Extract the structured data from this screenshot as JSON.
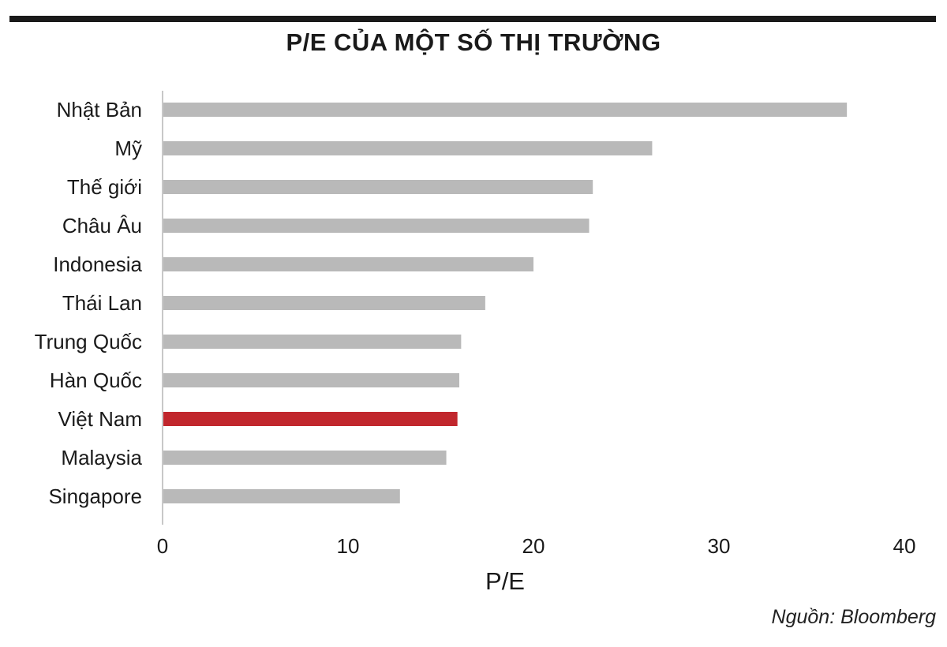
{
  "chart_data": {
    "type": "bar",
    "orientation": "horizontal",
    "title": "P/E CỦA MỘT SỐ THỊ TRƯỜNG",
    "xlabel": "P/E",
    "ylabel": "",
    "xlim": [
      0,
      40
    ],
    "xticks": [
      0,
      10,
      20,
      30,
      40
    ],
    "categories": [
      "Nhật Bản",
      "Mỹ",
      "Thế giới",
      "Châu Âu",
      "Indonesia",
      "Thái Lan",
      "Trung Quốc",
      "Hàn Quốc",
      "Việt Nam",
      "Malaysia",
      "Singapore"
    ],
    "values": [
      36.9,
      26.4,
      23.2,
      23.0,
      20.0,
      17.4,
      16.1,
      16.0,
      15.9,
      15.3,
      12.8
    ],
    "highlight_category": "Việt Nam",
    "colors": {
      "bar": "#b9b9b9",
      "highlight": "#c1272d",
      "axis": "#c8c8c8",
      "text": "#1a1a1a"
    },
    "grid": false,
    "legend": "none"
  },
  "source": "Nguồn: Bloomberg"
}
